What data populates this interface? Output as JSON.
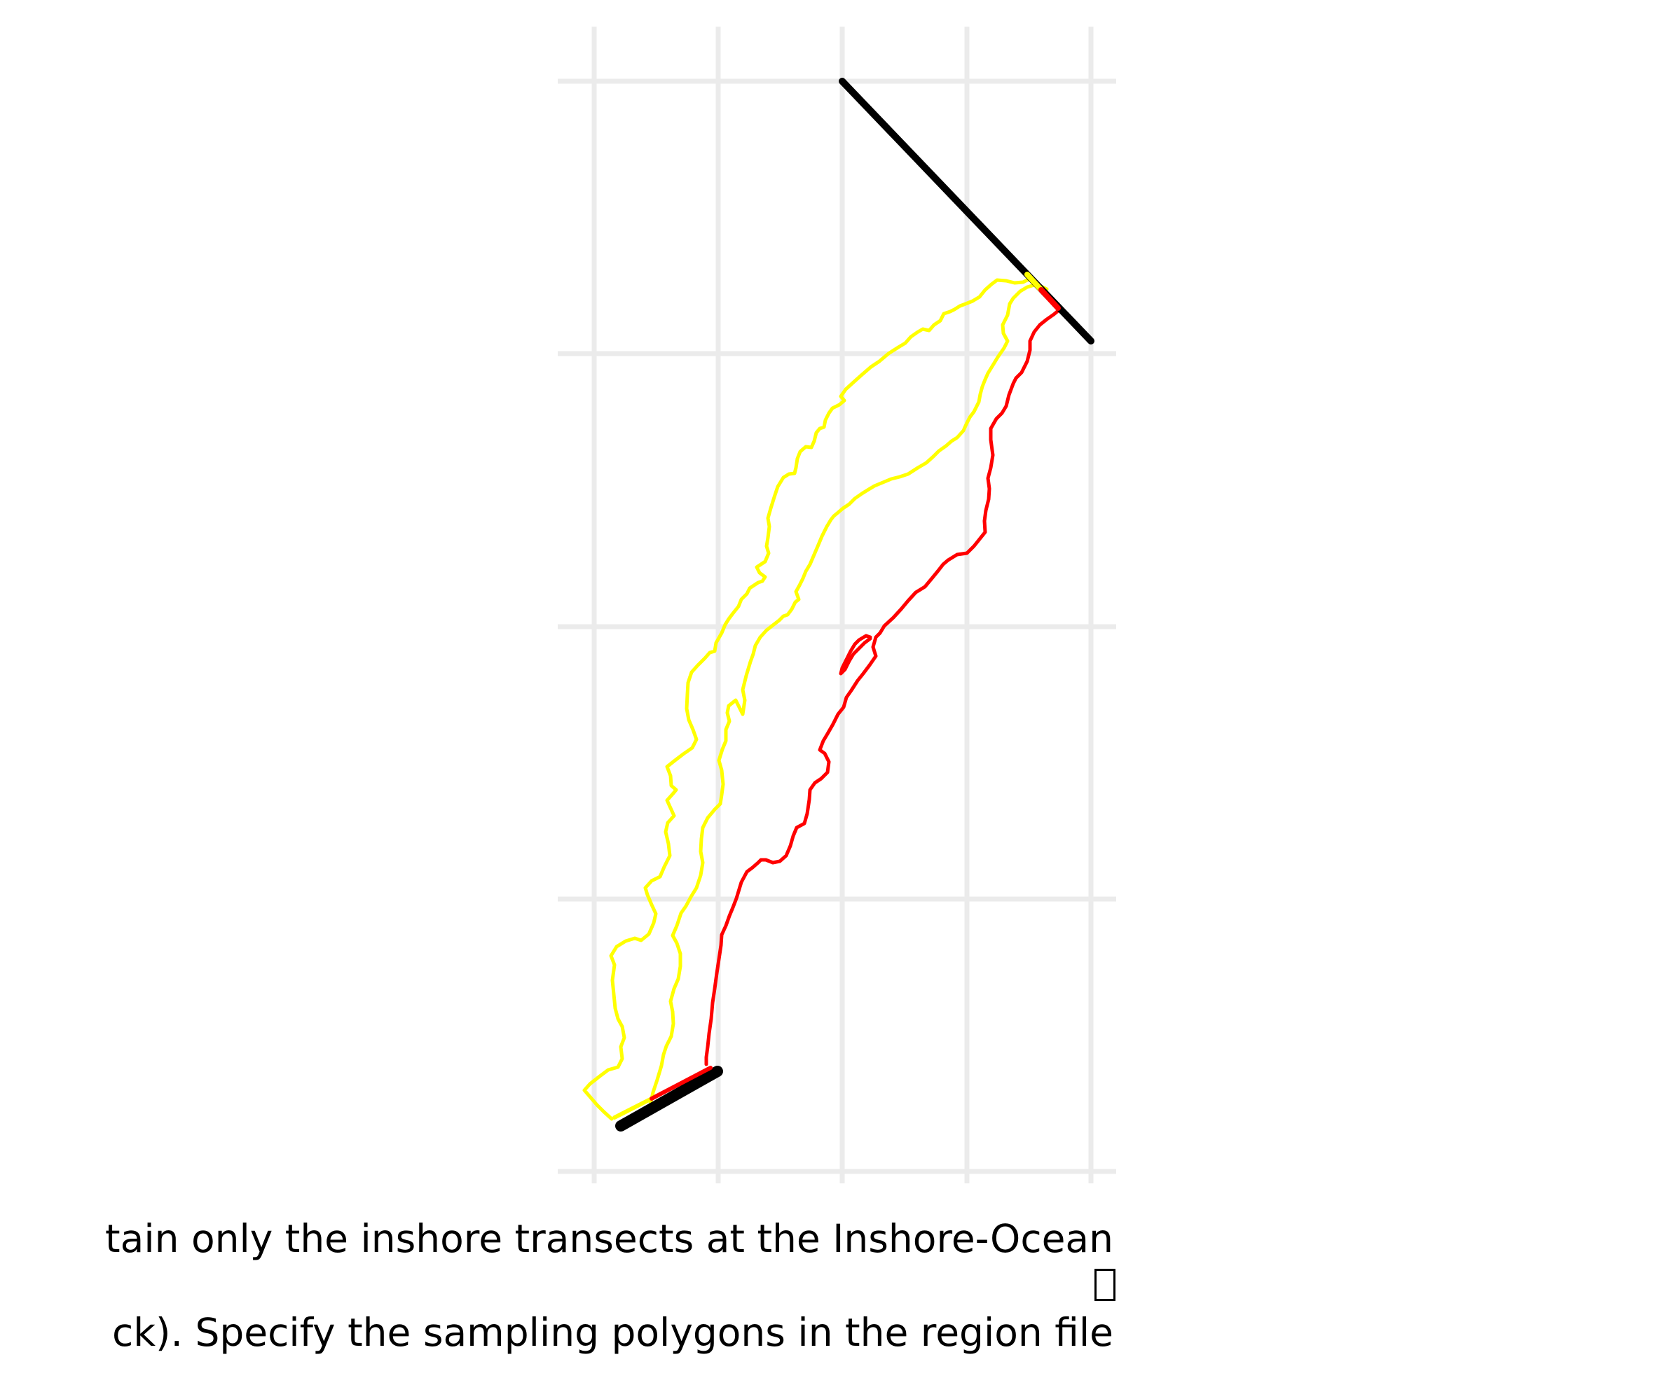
{
  "figure": {
    "caption_lines": [
      "tain only the inshore transects at the Inshore-Ocean",
      "ck). Specify the sampling polygons in the region file"
    ],
    "missing_glyph_box": true
  },
  "chart_data": {
    "type": "map",
    "title": "",
    "xlabel": "",
    "ylabel": "",
    "grid": true,
    "gridlines": {
      "vertical": 5,
      "horizontal": 5
    },
    "tick_labels_shown": false,
    "colors": {
      "background": "#ffffff",
      "grid": "#ebebeb",
      "boundary_line": "#000000",
      "inshore_path": "#ffff00",
      "ocean_path": "#ff0000"
    },
    "series": [
      {
        "role": "boundary-line-north",
        "color": "#000000"
      },
      {
        "role": "boundary-line-south",
        "color": "#000000"
      },
      {
        "role": "outer-inshore-edge",
        "color": "#ffff00"
      },
      {
        "role": "inner-inshore-edge",
        "color": "#ffff00"
      },
      {
        "role": "ocean-edge",
        "color": "#ff0000"
      }
    ]
  }
}
